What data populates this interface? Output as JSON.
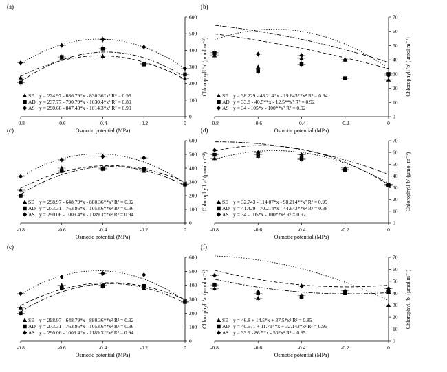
{
  "chart_data": [
    {
      "type": "scatter",
      "panel_label": "(a)",
      "xlabel": "Osmotic potential (MPa)",
      "ylabel": "Chlorophyll 'a' (μmol m⁻²)",
      "y_axis_side": "right",
      "xlim": [
        -0.8,
        0
      ],
      "ylim": [
        0,
        600
      ],
      "x_ticks": [
        "-0.8",
        "-0.6",
        "-0.4",
        "-0.2",
        "0"
      ],
      "y_ticks": [
        "0",
        "100",
        "200",
        "300",
        "400",
        "500",
        "600"
      ],
      "x": [
        -0.8,
        -0.6,
        -0.4,
        -0.2,
        0
      ],
      "series": [
        {
          "name": "SE",
          "marker": "triangle",
          "line": "dashed",
          "values": [
            235,
            355,
            365,
            320,
            230
          ],
          "coef": [
            224.97,
            -686.79,
            -830.36
          ],
          "equation": "y = 224.97 - 686.79*x - 830.36*x² R² = 0.95"
        },
        {
          "name": "AD",
          "marker": "square",
          "line": "dash-dot",
          "values": [
            205,
            360,
            410,
            315,
            255
          ],
          "coef": [
            237.77,
            -790.79,
            -1030.4
          ],
          "equation": "y = 237.77 - 790.79*x - 1030.4*x² R² = 0.89"
        },
        {
          "name": "AS",
          "marker": "diamond",
          "line": "dotted",
          "values": [
            325,
            430,
            465,
            420,
            290
          ],
          "coef": [
            290.66,
            -847.43,
            -1014.3
          ],
          "equation": "y = 290.66 - 847.43*x - 1014.3*x² R² = 0.99"
        }
      ]
    },
    {
      "type": "scatter",
      "panel_label": "(b)",
      "xlabel": "Osmotic potential (MPa)",
      "ylabel": "Chlorophyll 'b' (μmol m⁻²)",
      "y_axis_side": "right",
      "xlim": [
        -0.8,
        0
      ],
      "ylim": [
        0,
        70
      ],
      "x_ticks": [
        "-0.8",
        "-0.6",
        "-0.4",
        "-0.2",
        "0"
      ],
      "y_ticks": [
        "0",
        "10",
        "20",
        "30",
        "40",
        "50",
        "60",
        "70"
      ],
      "x": [
        -0.8,
        -0.6,
        -0.4,
        -0.2,
        0
      ],
      "series": [
        {
          "name": "SE",
          "marker": "triangle",
          "line": "dash-dot",
          "values": [
            43,
            35,
            41,
            40,
            26
          ],
          "coef": [
            38.229,
            -48.214,
            -19.643
          ],
          "equation": "y = 38.229 - 48.214*x - 19.643**x² R² = 0.94"
        },
        {
          "name": "AD",
          "marker": "square",
          "line": "dashed",
          "values": [
            45,
            32,
            37,
            27,
            30
          ],
          "coef": [
            33.8,
            -40.5,
            -12.5
          ],
          "equation": "y = 33.8 - 40.5**x - 12.5**x² R² = 0.92"
        },
        {
          "name": "AS",
          "marker": "diamond",
          "line": "dotted",
          "values": [
            44,
            44,
            43,
            40,
            29
          ],
          "coef": [
            34,
            -105,
            -100
          ],
          "equation": "y = 34 - 105*x - 100**x² R² = 0.92"
        }
      ]
    },
    {
      "type": "scatter",
      "panel_label": "(c)",
      "xlabel": "Osmotic potential (MPa)",
      "ylabel": "Chlorophyll 'a' (μmol m⁻²)",
      "y_axis_side": "right",
      "xlim": [
        -0.8,
        0
      ],
      "ylim": [
        0,
        600
      ],
      "x_ticks": [
        "-0.8",
        "-0.6",
        "-0.4",
        "-0.2",
        "0"
      ],
      "y_ticks": [
        "0",
        "100",
        "200",
        "300",
        "400",
        "500",
        "600"
      ],
      "x": [
        -0.8,
        -0.6,
        -0.4,
        -0.2,
        0
      ],
      "series": [
        {
          "name": "SE",
          "marker": "triangle",
          "line": "dashed",
          "values": [
            240,
            400,
            400,
            380,
            280
          ],
          "coef": [
            298.97,
            -648.79,
            -880.36
          ],
          "equation": "y = 298.97 - 648.79*x - 880.36**x² R² = 0.92"
        },
        {
          "name": "AD",
          "marker": "square",
          "line": "dash-dot",
          "values": [
            200,
            380,
            395,
            395,
            285
          ],
          "coef": [
            273.31,
            -763.86,
            -1053.6
          ],
          "equation": "y = 273.31 - 763.86*x - 1053.6**x² R² = 0.96"
        },
        {
          "name": "AS",
          "marker": "diamond",
          "line": "dotted",
          "values": [
            340,
            460,
            485,
            475,
            280
          ],
          "coef": [
            290.06,
            -1009.4,
            -1189.3
          ],
          "equation": "y = 290.06 - 1009.4*x - 1189.3**x² R² = 0.94"
        }
      ]
    },
    {
      "type": "scatter",
      "panel_label": "(d)",
      "xlabel": "Osmotic potential (MPa)",
      "ylabel": "Chlorophyll 'b' (μmol m⁻²)",
      "y_axis_side": "right",
      "xlim": [
        -0.8,
        0
      ],
      "ylim": [
        0,
        70
      ],
      "x_ticks": [
        "-0.8",
        "-0.6",
        "-0.4",
        "-0.2",
        "0"
      ],
      "y_ticks": [
        "0",
        "10",
        "20",
        "30",
        "40",
        "50",
        "60",
        "70"
      ],
      "x": [
        -0.8,
        -0.6,
        -0.4,
        -0.2,
        0
      ],
      "series": [
        {
          "name": "SE",
          "marker": "triangle",
          "line": "dashed",
          "values": [
            55,
            57,
            54,
            47,
            33
          ],
          "coef": [
            32.743,
            -114.07,
            -98.214
          ],
          "equation": "y = 32.743 - 114.07*x - 98.214**x² R² = 0.99"
        },
        {
          "name": "AD",
          "marker": "square",
          "line": "dash-dot",
          "values": [
            58,
            58,
            55,
            45,
            32
          ],
          "coef": [
            41.429,
            -70.214,
            -44.643
          ],
          "equation": "y = 41.429 - 70.214*x - 44.643**x² R² = 0.98"
        },
        {
          "name": "AS",
          "marker": "diamond",
          "line": "dotted",
          "values": [
            62,
            60,
            58,
            46,
            33
          ],
          "coef": [
            34,
            -105,
            -100
          ],
          "equation": "y = 34 - 105*x - 100**x² R² = 0.92"
        }
      ]
    },
    {
      "type": "scatter",
      "panel_label": "(c)",
      "xlabel": "Osmotic potential (MPa)",
      "ylabel": "Chlorophyll 'a' (μmol m⁻²)",
      "y_axis_side": "right",
      "xlim": [
        -0.8,
        0
      ],
      "ylim": [
        0,
        600
      ],
      "x_ticks": [
        "-0.8",
        "-0.6",
        "-0.4",
        "-0.2",
        "0"
      ],
      "y_ticks": [
        "0",
        "100",
        "200",
        "300",
        "400",
        "500",
        "600"
      ],
      "x": [
        -0.8,
        -0.6,
        -0.4,
        -0.2,
        0
      ],
      "series": [
        {
          "name": "SE",
          "marker": "triangle",
          "line": "dashed",
          "values": [
            240,
            400,
            400,
            380,
            280
          ],
          "coef": [
            298.97,
            -648.79,
            -880.36
          ],
          "equation": "y = 298.97 - 648.79*x - 880.36**x² R² = 0.92"
        },
        {
          "name": "AD",
          "marker": "square",
          "line": "dash-dot",
          "values": [
            200,
            380,
            395,
            395,
            285
          ],
          "coef": [
            273.31,
            -763.86,
            -1053.6
          ],
          "equation": "y = 273.31 - 763.86*x - 1053.6**x² R² = 0.96"
        },
        {
          "name": "AS",
          "marker": "diamond",
          "line": "dotted",
          "values": [
            340,
            460,
            485,
            475,
            280
          ],
          "coef": [
            290.06,
            -1009.4,
            -1189.3
          ],
          "equation": "y = 290.06 - 1009.4*x - 1189.3**x² R² = 0.94"
        }
      ]
    },
    {
      "type": "scatter",
      "panel_label": "(f)",
      "xlabel": "Osmotic potential (MPa)",
      "ylabel": "Chlorophyll 'b' (μmol m⁻²)",
      "y_axis_side": "right",
      "xlim": [
        -0.8,
        0
      ],
      "ylim": [
        0,
        70
      ],
      "x_ticks": [
        "-0.8",
        "-0.6",
        "-0.4",
        "-0.2",
        "0"
      ],
      "y_ticks": [
        "0",
        "10",
        "20",
        "30",
        "40",
        "50",
        "60",
        "70"
      ],
      "x": [
        -0.8,
        -0.6,
        -0.4,
        -0.2,
        0
      ],
      "series": [
        {
          "name": "SE",
          "marker": "triangle",
          "line": "dashed",
          "values": [
            44,
            36,
            38,
            41,
            30
          ],
          "coef": [
            46.8,
            14.5,
            37.5
          ],
          "equation": "y = 46.8 + 14.5*x + 37.5*x² R² = 0.85"
        },
        {
          "name": "AD",
          "marker": "square",
          "line": "dash-dot",
          "values": [
            47,
            40,
            37,
            40,
            41
          ],
          "coef": [
            40.571,
            11.714,
            32.143
          ],
          "equation": "y = 40.571 + 11.714*x + 32.143*x² R² = 0.96"
        },
        {
          "name": "AS",
          "marker": "diamond",
          "line": "dotted",
          "values": [
            55,
            41,
            46,
            42,
            44
          ],
          "coef": [
            33.9,
            -86.5,
            -50
          ],
          "equation": "y = 33.9 - 86.5*x - 50*x² R² = 0.85"
        }
      ]
    }
  ]
}
